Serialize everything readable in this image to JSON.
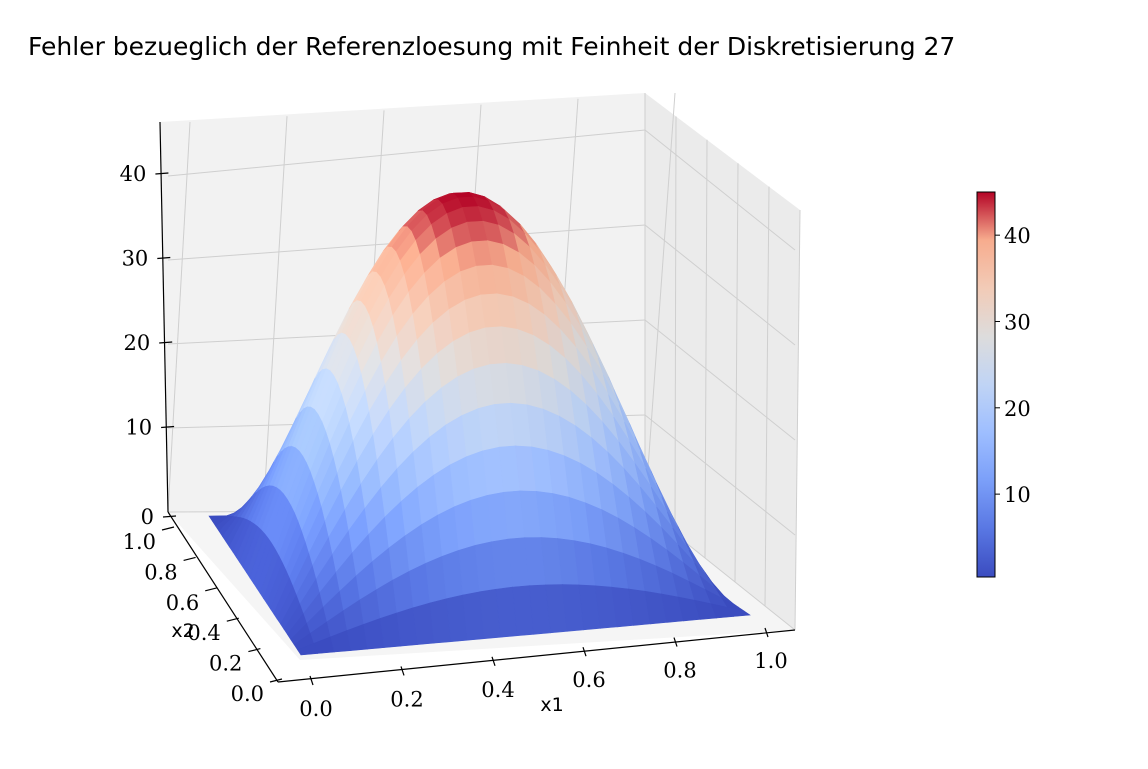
{
  "chart_data": {
    "type": "surface3d",
    "title": "Fehler bezueglich der Referenzloesung mit Feinheit der Diskretisierung 27",
    "xlabel": "x1",
    "ylabel": "x2",
    "zlabel": "",
    "x_range": [
      0.0,
      1.0
    ],
    "y_range": [
      0.0,
      1.0
    ],
    "z_range": [
      0,
      45
    ],
    "x_ticks": [
      "0.0",
      "0.2",
      "0.4",
      "0.6",
      "0.8",
      "1.0"
    ],
    "y_ticks": [
      "0.0",
      "0.2",
      "0.4",
      "0.6",
      "0.8",
      "1.0"
    ],
    "z_ticks": [
      "0",
      "10",
      "20",
      "30",
      "40"
    ],
    "z_max": 45,
    "grid_resolution": 27,
    "colormap": "coolwarm",
    "colorbar": {
      "ticks": [
        "10",
        "20",
        "30",
        "40"
      ],
      "min": 0.4,
      "max": 45
    },
    "grid": true
  }
}
